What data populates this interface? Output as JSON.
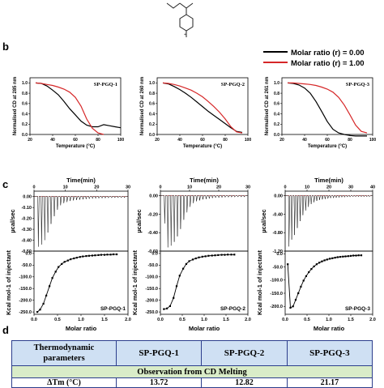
{
  "panels": {
    "b": "b",
    "c": "c",
    "d": "d"
  },
  "legend": {
    "items": [
      {
        "label": "Molar ratio (r) = 0.00",
        "color": "#000000"
      },
      {
        "label": "Molar ratio (r) = 1.00",
        "color": "#d62728"
      }
    ]
  },
  "cd_xlabel": "Temperature (°C)",
  "itc_time_label": "Time(min)",
  "itc_ylabel_top": "µcal/sec",
  "itc_ylabel_bottom": "Kcal mol-1 of injectant",
  "itc_xlabel": "Molar ratio",
  "table": {
    "header": [
      "Thermodynamic parameters",
      "SP-PGQ-1",
      "SP-PGQ-2",
      "SP-PGQ-3"
    ],
    "section": "Observation from CD Melting",
    "partial_row": [
      "ΔTm (°C)",
      "13.72",
      "12.82",
      "21.17"
    ]
  },
  "chart_data": [
    {
      "type": "line",
      "title": "SP-PGQ-1",
      "xlabel": "Temperature (°C)",
      "ylabel": "Normalised CD at 285 nm",
      "xlim": [
        20,
        100
      ],
      "ylim": [
        0,
        1.1
      ],
      "xticks": [
        20,
        40,
        60,
        80,
        100
      ],
      "yticks": [
        0.0,
        0.2,
        0.4,
        0.6,
        0.8,
        1.0
      ],
      "series": [
        {
          "name": "Molar ratio (r) = 0.00",
          "x": [
            25,
            30,
            35,
            40,
            45,
            50,
            55,
            60,
            65,
            70,
            75,
            80,
            85,
            90,
            95,
            100
          ],
          "y": [
            1.0,
            0.99,
            0.94,
            0.86,
            0.77,
            0.64,
            0.5,
            0.38,
            0.26,
            0.18,
            0.15,
            0.15,
            0.19,
            0.17,
            0.15,
            0.13
          ]
        },
        {
          "name": "Molar ratio (r) = 1.00",
          "x": [
            25,
            30,
            35,
            40,
            45,
            50,
            55,
            60,
            65,
            70,
            75,
            80,
            85
          ],
          "y": [
            1.0,
            0.99,
            0.97,
            0.95,
            0.92,
            0.88,
            0.82,
            0.72,
            0.55,
            0.3,
            0.12,
            0.03,
            0.0
          ]
        }
      ]
    },
    {
      "type": "line",
      "title": "SP-PGQ-2",
      "xlabel": "Temperature (°C)",
      "ylabel": "Normalised CD at 260 nm",
      "xlim": [
        20,
        100
      ],
      "ylim": [
        0,
        1.1
      ],
      "xticks": [
        20,
        40,
        60,
        80,
        100
      ],
      "yticks": [
        0.0,
        0.2,
        0.4,
        0.6,
        0.8,
        1.0
      ],
      "series": [
        {
          "name": "Molar ratio (r) = 0.00",
          "x": [
            25,
            30,
            35,
            40,
            45,
            50,
            55,
            60,
            65,
            70,
            75,
            80,
            85,
            90,
            95
          ],
          "y": [
            1.0,
            0.98,
            0.93,
            0.87,
            0.8,
            0.72,
            0.63,
            0.54,
            0.45,
            0.37,
            0.29,
            0.21,
            0.13,
            0.06,
            0.04
          ]
        },
        {
          "name": "Molar ratio (r) = 1.00",
          "x": [
            25,
            30,
            35,
            40,
            45,
            50,
            55,
            60,
            65,
            70,
            75,
            80,
            85,
            90,
            95
          ],
          "y": [
            1.0,
            0.99,
            0.97,
            0.94,
            0.9,
            0.86,
            0.8,
            0.73,
            0.64,
            0.54,
            0.43,
            0.3,
            0.15,
            0.05,
            0.03
          ]
        }
      ]
    },
    {
      "type": "line",
      "title": "SP-PGQ-3",
      "xlabel": "Temperature (°C)",
      "ylabel": "Normalised CD at 261 nm",
      "xlim": [
        20,
        100
      ],
      "ylim": [
        0,
        1.1
      ],
      "xticks": [
        20,
        40,
        60,
        80,
        100
      ],
      "yticks": [
        0.0,
        0.2,
        0.4,
        0.6,
        0.8,
        1.0
      ],
      "series": [
        {
          "name": "Molar ratio (r) = 0.00",
          "x": [
            25,
            30,
            35,
            40,
            45,
            50,
            55,
            60,
            65,
            70,
            75,
            80,
            85,
            90,
            95
          ],
          "y": [
            1.0,
            0.99,
            0.96,
            0.9,
            0.8,
            0.64,
            0.45,
            0.25,
            0.1,
            0.03,
            0.0,
            -0.02,
            -0.03,
            -0.03,
            -0.03
          ]
        },
        {
          "name": "Molar ratio (r) = 1.00",
          "x": [
            25,
            30,
            35,
            40,
            45,
            50,
            55,
            60,
            65,
            70,
            75,
            80,
            85,
            90,
            95
          ],
          "y": [
            1.0,
            1.0,
            0.99,
            0.98,
            0.97,
            0.95,
            0.92,
            0.88,
            0.82,
            0.72,
            0.57,
            0.38,
            0.18,
            0.06,
            0.03
          ]
        }
      ]
    },
    {
      "type": "line",
      "title": "SP-PGQ-1",
      "xlabel": "Molar ratio",
      "ylabel": "Kcal mol-1 of injectant",
      "time_xlim": [
        0,
        30
      ],
      "time_xticks": [
        0,
        10,
        20,
        30
      ],
      "top_ylim": [
        -0.5,
        0.05
      ],
      "top_yticks": [
        0.0,
        -0.1,
        -0.2,
        -0.3,
        -0.4,
        -0.5
      ],
      "top_ylabel": "µcal/sec",
      "xlim": [
        0,
        2.0
      ],
      "xticks": [
        0.0,
        0.5,
        1.0,
        1.5,
        2.0
      ],
      "ylim": [
        -260,
        10
      ],
      "yticks": [
        0,
        -50,
        -100,
        -150,
        -200,
        -250
      ],
      "injections": 28,
      "peak_depths": [
        0.46,
        0.44,
        0.4,
        0.33,
        0.25,
        0.18,
        0.12,
        0.08,
        0.06,
        0.05,
        0.04,
        0.035,
        0.03,
        0.028,
        0.025,
        0.022,
        0.02,
        0.018,
        0.016,
        0.015,
        0.014,
        0.013,
        0.012,
        0.011,
        0.01,
        0.01,
        0.01,
        0.01
      ],
      "x": [
        0.07,
        0.13,
        0.2,
        0.26,
        0.33,
        0.39,
        0.46,
        0.52,
        0.59,
        0.65,
        0.72,
        0.78,
        0.85,
        0.91,
        0.98,
        1.04,
        1.11,
        1.17,
        1.24,
        1.3,
        1.37,
        1.43,
        1.5,
        1.56,
        1.63,
        1.69,
        1.76
      ],
      "y": [
        -250,
        -240,
        -215,
        -180,
        -140,
        -105,
        -78,
        -58,
        -45,
        -36,
        -30,
        -25,
        -21,
        -18,
        -15,
        -13,
        -11,
        -10,
        -9,
        -8,
        -7,
        -6,
        -6,
        -5,
        -5,
        -4,
        -4
      ]
    },
    {
      "type": "line",
      "title": "SP-PGQ-2",
      "xlabel": "Molar ratio",
      "ylabel": "Kcal mol-1 of injectant",
      "time_xlim": [
        0,
        30
      ],
      "time_xticks": [
        0,
        10,
        20,
        30
      ],
      "top_ylim": [
        -0.6,
        0.05
      ],
      "top_yticks": [
        0.0,
        -0.2,
        -0.4,
        -0.6
      ],
      "top_ylabel": "µcal/sec",
      "xlim": [
        0,
        2.0
      ],
      "xticks": [
        0.0,
        0.5,
        1.0,
        1.5,
        2.0
      ],
      "ylim": [
        -260,
        10
      ],
      "yticks": [
        0,
        -50,
        -100,
        -150,
        -200,
        -250
      ],
      "injections": 26,
      "peak_depths": [
        0.3,
        0.56,
        0.54,
        0.5,
        0.44,
        0.36,
        0.26,
        0.18,
        0.12,
        0.08,
        0.06,
        0.05,
        0.04,
        0.035,
        0.03,
        0.025,
        0.02,
        0.02,
        0.018,
        0.016,
        0.015,
        0.014,
        0.013,
        0.012,
        0.012,
        0.012
      ],
      "x": [
        0.08,
        0.15,
        0.22,
        0.3,
        0.37,
        0.44,
        0.52,
        0.59,
        0.66,
        0.74,
        0.81,
        0.88,
        0.96,
        1.03,
        1.1,
        1.18,
        1.25,
        1.32,
        1.4,
        1.47,
        1.54,
        1.62,
        1.69
      ],
      "y": [
        -238,
        -235,
        -225,
        -190,
        -140,
        -95,
        -65,
        -45,
        -33,
        -26,
        -21,
        -17,
        -14,
        -12,
        -10,
        -9,
        -8,
        -7,
        -6,
        -6,
        -5,
        -5,
        -5
      ]
    },
    {
      "type": "line",
      "title": "SP-PGQ-3",
      "xlabel": "Molar ratio",
      "ylabel": "Kcal mol-1 of injectant",
      "time_xlim": [
        0,
        40
      ],
      "time_xticks": [
        0,
        10,
        20,
        30,
        40
      ],
      "top_ylim": [
        -1.2,
        0.1
      ],
      "top_yticks": [
        0.0,
        -0.4,
        -0.8,
        -1.2
      ],
      "top_ylabel": "µcal/sec",
      "xlim": [
        0,
        2.0
      ],
      "xticks": [
        0.0,
        0.5,
        1.0,
        1.5,
        2.0
      ],
      "ylim": [
        -230,
        10
      ],
      "yticks": [
        0,
        -50,
        -100,
        -150,
        -200
      ],
      "injections": 30,
      "peak_depths": [
        1.1,
        0.95,
        0.85,
        0.7,
        0.55,
        0.42,
        0.32,
        0.24,
        0.18,
        0.14,
        0.11,
        0.09,
        0.08,
        0.07,
        0.06,
        0.05,
        0.045,
        0.04,
        0.035,
        0.03,
        0.03,
        0.025,
        0.025,
        0.02,
        0.02,
        0.02,
        0.02,
        0.02,
        0.02,
        0.02
      ],
      "x": [
        0.06,
        0.12,
        0.18,
        0.24,
        0.3,
        0.36,
        0.42,
        0.48,
        0.54,
        0.6,
        0.66,
        0.72,
        0.78,
        0.84,
        0.9,
        0.96,
        1.02,
        1.08,
        1.14,
        1.2,
        1.26,
        1.32,
        1.38,
        1.44,
        1.5,
        1.56,
        1.62,
        1.68,
        1.74
      ],
      "y": [
        -40,
        -205,
        -200,
        -175,
        -150,
        -125,
        -102,
        -85,
        -70,
        -58,
        -48,
        -40,
        -34,
        -29,
        -25,
        -22,
        -19,
        -17,
        -15,
        -13,
        -12,
        -11,
        -10,
        -9,
        -8,
        -7,
        -7,
        -6,
        -6
      ]
    }
  ]
}
